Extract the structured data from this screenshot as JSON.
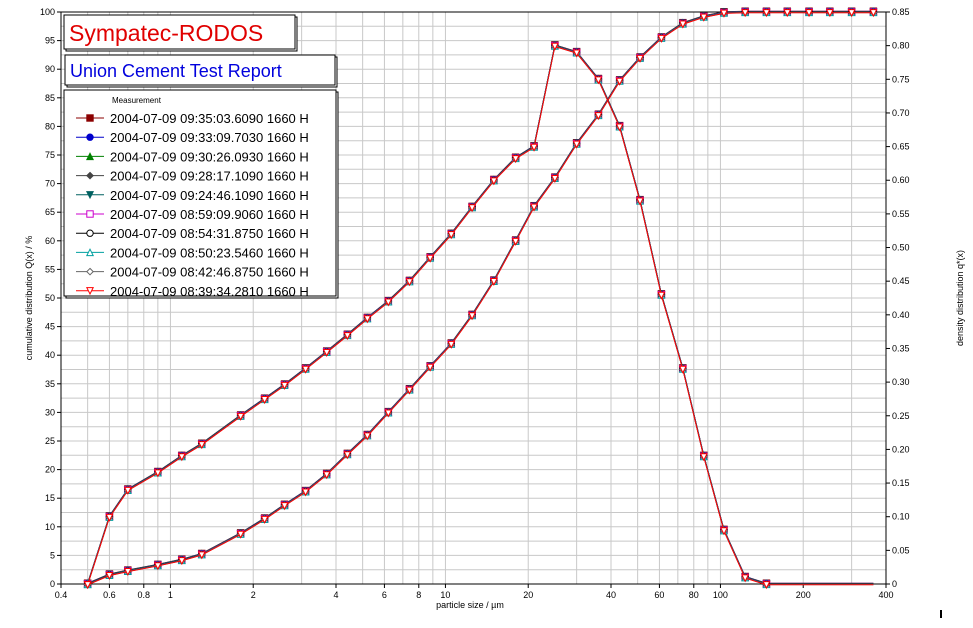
{
  "chart_data": {
    "type": "line",
    "title": "Sympatec-RODOS",
    "subtitle": "Union Cement Test Report",
    "xlabel": "particle size / µm",
    "ylabel_left": "cumulative distribution Q(x) / %",
    "ylabel_right": "density distribution q*(x)",
    "xscale": "log",
    "xlim": [
      0.4,
      400
    ],
    "ylim_left": [
      0,
      100
    ],
    "ylim_right": [
      0,
      0.85
    ],
    "x_ticks": [
      0.4,
      0.6,
      0.8,
      1,
      2,
      4,
      6,
      8,
      10,
      20,
      40,
      60,
      80,
      100,
      200,
      400
    ],
    "x_tick_labels": [
      "0.4",
      "0.6",
      "0.8",
      "1",
      "2",
      "4",
      "6",
      "8",
      "10",
      "20",
      "40",
      "60",
      "80",
      "100",
      "200",
      "400"
    ],
    "y_left_ticks": [
      0,
      5,
      10,
      15,
      20,
      25,
      30,
      35,
      40,
      45,
      50,
      55,
      60,
      65,
      70,
      75,
      80,
      85,
      90,
      95,
      100
    ],
    "y_left_tick_labels": [
      "0",
      "5",
      "10",
      "15",
      "20",
      "25",
      "30",
      "35",
      "40",
      "45",
      "50",
      "55",
      "60",
      "65",
      "70",
      "75",
      "80",
      "85",
      "90",
      "95",
      "100"
    ],
    "y_right_ticks": [
      0,
      0.05,
      0.1,
      0.15,
      0.2,
      0.25,
      0.3,
      0.35,
      0.4,
      0.45,
      0.5,
      0.55,
      0.6,
      0.65,
      0.7,
      0.75,
      0.8,
      0.85
    ],
    "y_right_tick_labels": [
      "0",
      "0.05",
      "0.10",
      "0.15",
      "0.20",
      "0.25",
      "0.30",
      "0.35",
      "0.40",
      "0.45",
      "0.50",
      "0.55",
      "0.60",
      "0.65",
      "0.70",
      "0.75",
      "0.80",
      "0.85"
    ],
    "grid": true,
    "legend_title": "Measurement",
    "legend_placement": "top-left",
    "series": [
      {
        "name": "2004-07-09 09:35:03.6090 1660 H",
        "color": "#8b0000",
        "marker": "square-filled"
      },
      {
        "name": "2004-07-09 09:33:09.7030 1660 H",
        "color": "#0000cc",
        "marker": "circle-filled"
      },
      {
        "name": "2004-07-09 09:30:26.0930 1660 H",
        "color": "#008000",
        "marker": "triangle-up-filled"
      },
      {
        "name": "2004-07-09 09:28:17.1090 1660 H",
        "color": "#444444",
        "marker": "diamond-filled"
      },
      {
        "name": "2004-07-09 09:24:46.1090 1660 H",
        "color": "#006060",
        "marker": "triangle-down-filled"
      },
      {
        "name": "2004-07-09 08:59:09.9060 1660 H",
        "color": "#cc00cc",
        "marker": "square-open"
      },
      {
        "name": "2004-07-09 08:54:31.8750 1660 H",
        "color": "#000000",
        "marker": "circle-open"
      },
      {
        "name": "2004-07-09 08:50:23.5460 1660 H",
        "color": "#00a0a0",
        "marker": "triangle-up-open"
      },
      {
        "name": "2004-07-09 08:42:46.8750 1660 H",
        "color": "#666666",
        "marker": "diamond-open"
      },
      {
        "name": "2004-07-09 08:39:34.2810 1660 H",
        "color": "#ff0000",
        "marker": "triangle-down-open"
      }
    ],
    "x": [
      0.5,
      0.6,
      0.7,
      0.9,
      1.1,
      1.3,
      1.8,
      2.2,
      2.6,
      3.1,
      3.7,
      4.4,
      5.2,
      6.2,
      7.4,
      8.8,
      10.5,
      12.5,
      15,
      18,
      21,
      25,
      30,
      36,
      43,
      51,
      61,
      73,
      87,
      103,
      123,
      147,
      175,
      210,
      250,
      300,
      360
    ],
    "cumulative": [
      0,
      1.6,
      2.3,
      3.3,
      4.2,
      5.2,
      8.8,
      11.4,
      13.8,
      16.2,
      19.2,
      22.7,
      26,
      30,
      34,
      38,
      42,
      47,
      53,
      60,
      66,
      71,
      77,
      82,
      88,
      92,
      95.5,
      98,
      99.2,
      99.9,
      100,
      100,
      100,
      100,
      100,
      100,
      100
    ],
    "density": [
      0,
      0.1,
      0.14,
      0.166,
      0.19,
      0.208,
      0.25,
      0.275,
      0.296,
      0.32,
      0.345,
      0.37,
      0.395,
      0.42,
      0.45,
      0.485,
      0.52,
      0.56,
      0.6,
      0.633,
      0.65,
      0.8,
      0.79,
      0.75,
      0.68,
      0.57,
      0.43,
      0.32,
      0.19,
      0.08,
      0.01,
      0,
      0,
      0,
      0,
      0,
      0
    ]
  }
}
